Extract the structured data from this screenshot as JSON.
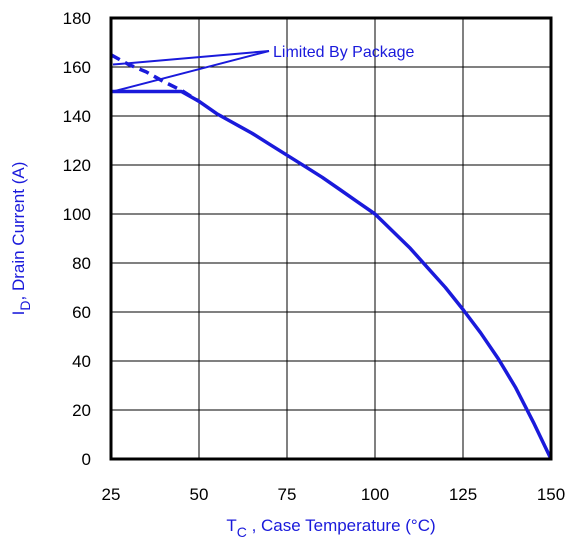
{
  "chart_data": {
    "type": "line",
    "xlabel_main": "T",
    "xlabel_sub": "C",
    "xlabel_rest": " , Case Temperature (°C)",
    "ylabel_main": "I",
    "ylabel_sub": "D",
    "ylabel_rest": ",  Drain Current (A)",
    "xlim": [
      25,
      150
    ],
    "ylim": [
      0,
      180
    ],
    "x_ticks": [
      25,
      50,
      75,
      100,
      125,
      150
    ],
    "y_ticks": [
      0,
      20,
      40,
      60,
      80,
      100,
      120,
      140,
      160,
      180
    ],
    "grid": true,
    "annotation": {
      "text": "Limited By Package",
      "points_to_x": [
        25,
        25
      ]
    },
    "line_color": "#1a1adb",
    "series": [
      {
        "style": "solid",
        "x": [
          25,
          30,
          35,
          40,
          45,
          50,
          55,
          60,
          65,
          70,
          75,
          80,
          85,
          90,
          95,
          100,
          105,
          110,
          115,
          120,
          125,
          130,
          135,
          140,
          145,
          150
        ],
        "y": [
          150,
          150,
          150,
          150,
          150,
          146,
          141,
          137,
          133,
          128.5,
          124,
          119.5,
          115,
          110,
          105,
          100,
          93,
          86,
          78,
          70,
          61,
          51.5,
          41,
          29,
          15,
          0
        ]
      },
      {
        "style": "dashed",
        "x": [
          25,
          30,
          35,
          40,
          45,
          50
        ],
        "y": [
          165,
          161,
          158,
          154,
          150.5,
          146
        ]
      }
    ]
  }
}
